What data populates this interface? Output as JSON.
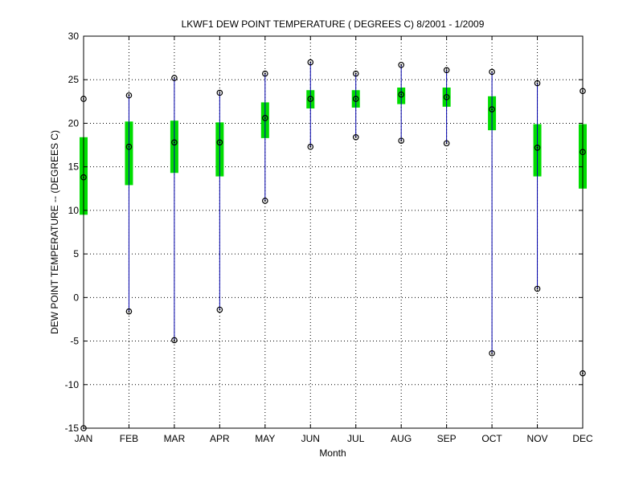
{
  "chart_data": {
    "type": "box",
    "title": "LKWF1  DEW POINT TEMPERATURE ( DEGREES C) 8/2001 - 1/2009",
    "xlabel": "Month",
    "ylabel": "DEW POINT TEMPERATURE -- (DEGREES C)",
    "categories": [
      "JAN",
      "FEB",
      "MAR",
      "APR",
      "MAY",
      "JUN",
      "JUL",
      "AUG",
      "SEP",
      "OCT",
      "NOV",
      "DEC"
    ],
    "ylim": [
      -15,
      30
    ],
    "yticks": [
      -15,
      -10,
      -5,
      0,
      5,
      10,
      15,
      20,
      25,
      30
    ],
    "grid": true,
    "series": [
      {
        "stat": "min",
        "values": [
          -15.0,
          -1.6,
          -4.9,
          -1.4,
          11.1,
          17.3,
          18.4,
          18.0,
          17.7,
          -6.4,
          1.0,
          -8.7
        ]
      },
      {
        "stat": "q1",
        "values": [
          9.5,
          12.9,
          14.3,
          13.9,
          18.3,
          21.7,
          21.8,
          22.2,
          21.9,
          19.2,
          13.9,
          12.5
        ]
      },
      {
        "stat": "median",
        "values": [
          13.8,
          17.3,
          17.8,
          17.8,
          20.6,
          22.8,
          22.8,
          23.3,
          23.0,
          21.6,
          17.2,
          16.7
        ]
      },
      {
        "stat": "q3",
        "values": [
          18.4,
          20.2,
          20.3,
          20.1,
          22.4,
          23.8,
          23.8,
          24.1,
          24.1,
          23.1,
          19.9,
          19.9
        ]
      },
      {
        "stat": "max",
        "values": [
          22.8,
          23.2,
          25.2,
          23.5,
          25.7,
          27.0,
          25.7,
          26.7,
          26.1,
          25.9,
          24.6,
          23.7
        ]
      }
    ],
    "colors": {
      "whisker": "#0000aa",
      "box": "#00dd00",
      "marker": "#000000",
      "grid": "#000000"
    }
  }
}
